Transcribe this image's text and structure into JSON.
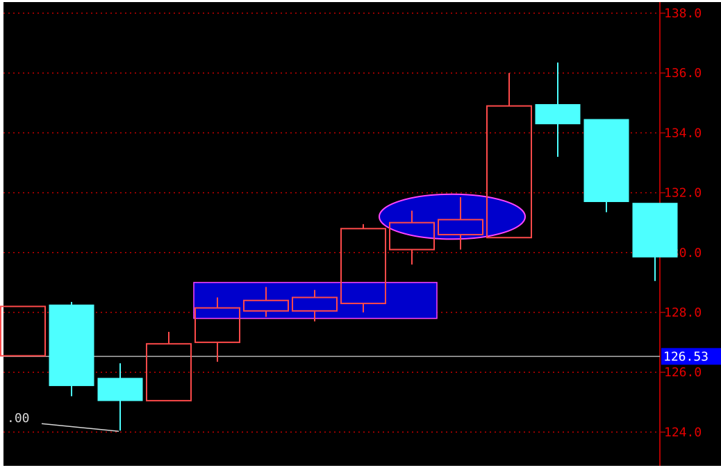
{
  "colors": {
    "background": "#000000",
    "grid": "#c80000",
    "axis": "#b40000",
    "axis_text": "#e60000",
    "bull_candle": "#ff4a4a",
    "bear_candle": "#4dffff",
    "highlight_fill": "#0000cc",
    "highlight_stroke": "#ff44ff",
    "current_price_line": "#b4b4b4",
    "price_tag_bg": "#0000ff",
    "price_tag_text": "#ffffff",
    "annotation_text": "#d8d8d8"
  },
  "chart_data": {
    "type": "candlestick",
    "title": "",
    "xlabel": "",
    "ylabel": "",
    "ylim": [
      123.0,
      138.3
    ],
    "grid": true,
    "y_ticks": [
      {
        "value": 138.0,
        "label": "138.0"
      },
      {
        "value": 136.0,
        "label": "136.0"
      },
      {
        "value": 134.0,
        "label": "134.0"
      },
      {
        "value": 132.0,
        "label": "132.0"
      },
      {
        "value": 130.0,
        "label": "130.0"
      },
      {
        "value": 128.0,
        "label": "128.0"
      },
      {
        "value": 126.0,
        "label": "126.0"
      },
      {
        "value": 124.0,
        "label": "124.0"
      }
    ],
    "current_price": {
      "value": 126.53,
      "label": "126.53"
    },
    "annotation": {
      "label": ".00",
      "price": 124.05
    },
    "candles": [
      {
        "open": 126.55,
        "high": 128.2,
        "low": 126.55,
        "close": 128.2
      },
      {
        "open": 128.25,
        "high": 128.35,
        "low": 125.2,
        "close": 125.55
      },
      {
        "open": 125.8,
        "high": 126.3,
        "low": 124.05,
        "close": 125.05
      },
      {
        "open": 125.05,
        "high": 127.35,
        "low": 125.05,
        "close": 126.95
      },
      {
        "open": 127.0,
        "high": 128.5,
        "low": 126.35,
        "close": 128.15
      },
      {
        "open": 128.05,
        "high": 128.85,
        "low": 127.85,
        "close": 128.4
      },
      {
        "open": 128.05,
        "high": 128.75,
        "low": 127.7,
        "close": 128.5
      },
      {
        "open": 128.3,
        "high": 130.95,
        "low": 128.0,
        "close": 130.8
      },
      {
        "open": 130.1,
        "high": 131.4,
        "low": 129.6,
        "close": 131.0
      },
      {
        "open": 130.6,
        "high": 131.85,
        "low": 130.1,
        "close": 131.1
      },
      {
        "open": 130.5,
        "high": 136.0,
        "low": 130.5,
        "close": 134.9
      },
      {
        "open": 134.95,
        "high": 136.35,
        "low": 133.2,
        "close": 134.3
      },
      {
        "open": 134.45,
        "high": 134.45,
        "low": 131.35,
        "close": 131.7
      },
      {
        "open": 131.65,
        "high": 131.65,
        "low": 129.05,
        "close": 129.85
      }
    ],
    "highlight_box": {
      "from_candle": 4,
      "to_candle": 8,
      "price_low": 127.8,
      "price_high": 129.0
    },
    "highlight_ellipse": {
      "center_candle": 9,
      "center_price": 131.2,
      "price_radius": 0.75,
      "candle_radius": 1.5
    }
  }
}
